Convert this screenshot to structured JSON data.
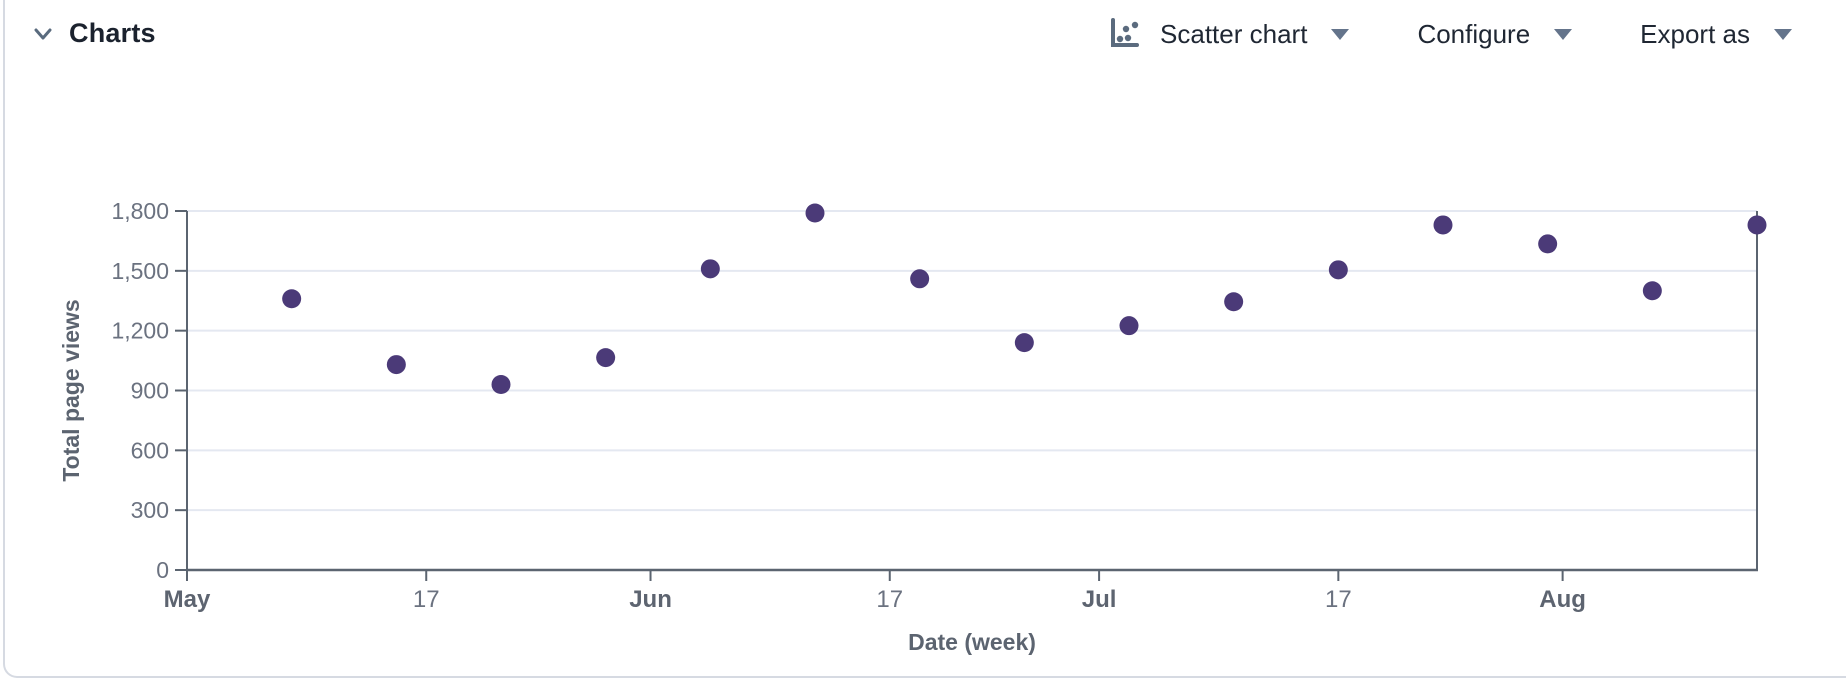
{
  "panel": {
    "title": "Charts"
  },
  "toolbar": {
    "chart_type_label": "Scatter chart",
    "chart_type_icon": "scatter-chart-icon",
    "configure_label": "Configure",
    "export_label": "Export as"
  },
  "colors": {
    "title_text": "#1b222e",
    "control_text": "#1f2733",
    "control_icon": "#5b6b7e",
    "caret": "#64748b",
    "card_border": "#d6dae2"
  },
  "chart_data": {
    "type": "scatter",
    "title": "",
    "xlabel": "Date (week)",
    "ylabel": "Total page views",
    "x_unit": "days since May 1",
    "x_domain": [
      0,
      105
    ],
    "ylim": [
      0,
      1800
    ],
    "y_ticks": [
      0,
      300,
      600,
      900,
      1200,
      1500,
      1800
    ],
    "x_ticks": [
      {
        "day": 0,
        "label": "May",
        "month": true
      },
      {
        "day": 16,
        "label": "17",
        "month": false
      },
      {
        "day": 31,
        "label": "Jun",
        "month": true
      },
      {
        "day": 47,
        "label": "17",
        "month": false
      },
      {
        "day": 61,
        "label": "Jul",
        "month": true
      },
      {
        "day": 77,
        "label": "17",
        "month": false
      },
      {
        "day": 92,
        "label": "Aug",
        "month": true
      }
    ],
    "points": [
      {
        "date": "May 8",
        "day": 7,
        "value": 1360
      },
      {
        "date": "May 15",
        "day": 14,
        "value": 1030
      },
      {
        "date": "May 22",
        "day": 21,
        "value": 930
      },
      {
        "date": "May 29",
        "day": 28,
        "value": 1065
      },
      {
        "date": "Jun 5",
        "day": 35,
        "value": 1510
      },
      {
        "date": "Jun 12",
        "day": 42,
        "value": 1790
      },
      {
        "date": "Jun 19",
        "day": 49,
        "value": 1460
      },
      {
        "date": "Jun 26",
        "day": 56,
        "value": 1140
      },
      {
        "date": "Jul 3",
        "day": 63,
        "value": 1225
      },
      {
        "date": "Jul 10",
        "day": 70,
        "value": 1345
      },
      {
        "date": "Jul 17",
        "day": 77,
        "value": 1505
      },
      {
        "date": "Jul 24",
        "day": 84,
        "value": 1730
      },
      {
        "date": "Jul 31",
        "day": 91,
        "value": 1635
      },
      {
        "date": "Aug 7",
        "day": 98,
        "value": 1400
      },
      {
        "date": "Aug 14",
        "day": 105,
        "value": 1730
      }
    ],
    "colors": {
      "point": "#4b3a78",
      "grid": "#e4e8f1",
      "axis": "#5b6470",
      "tick_label": "#6b7280",
      "month_label": "#5d6470",
      "axis_title": "#5c6470"
    },
    "grid": true,
    "legend": false
  }
}
